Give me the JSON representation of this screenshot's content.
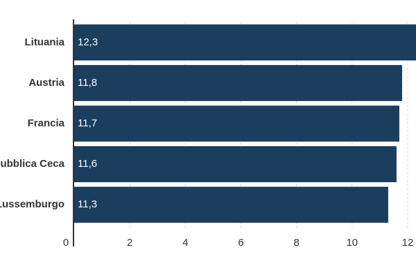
{
  "chart_data": {
    "type": "bar",
    "orientation": "horizontal",
    "categories": [
      "Lituania",
      "Austria",
      "Francia",
      "Repubblica Ceca",
      "Lussemburgo"
    ],
    "values": [
      12.3,
      11.8,
      11.7,
      11.6,
      11.3
    ],
    "value_labels": [
      "12,3",
      "11,8",
      "11,7",
      "11,6",
      "11,3"
    ],
    "xlim": [
      0,
      12.3
    ],
    "x_ticks": [
      0,
      2,
      4,
      6,
      8,
      10,
      12
    ],
    "x_tick_labels": [
      "0",
      "2",
      "4",
      "6",
      "8",
      "10",
      "12"
    ],
    "grid": "vertical dashed",
    "bar_color": "#1b3d5e",
    "grid_color": "#d9d9d9",
    "axis_color": "#333333"
  }
}
